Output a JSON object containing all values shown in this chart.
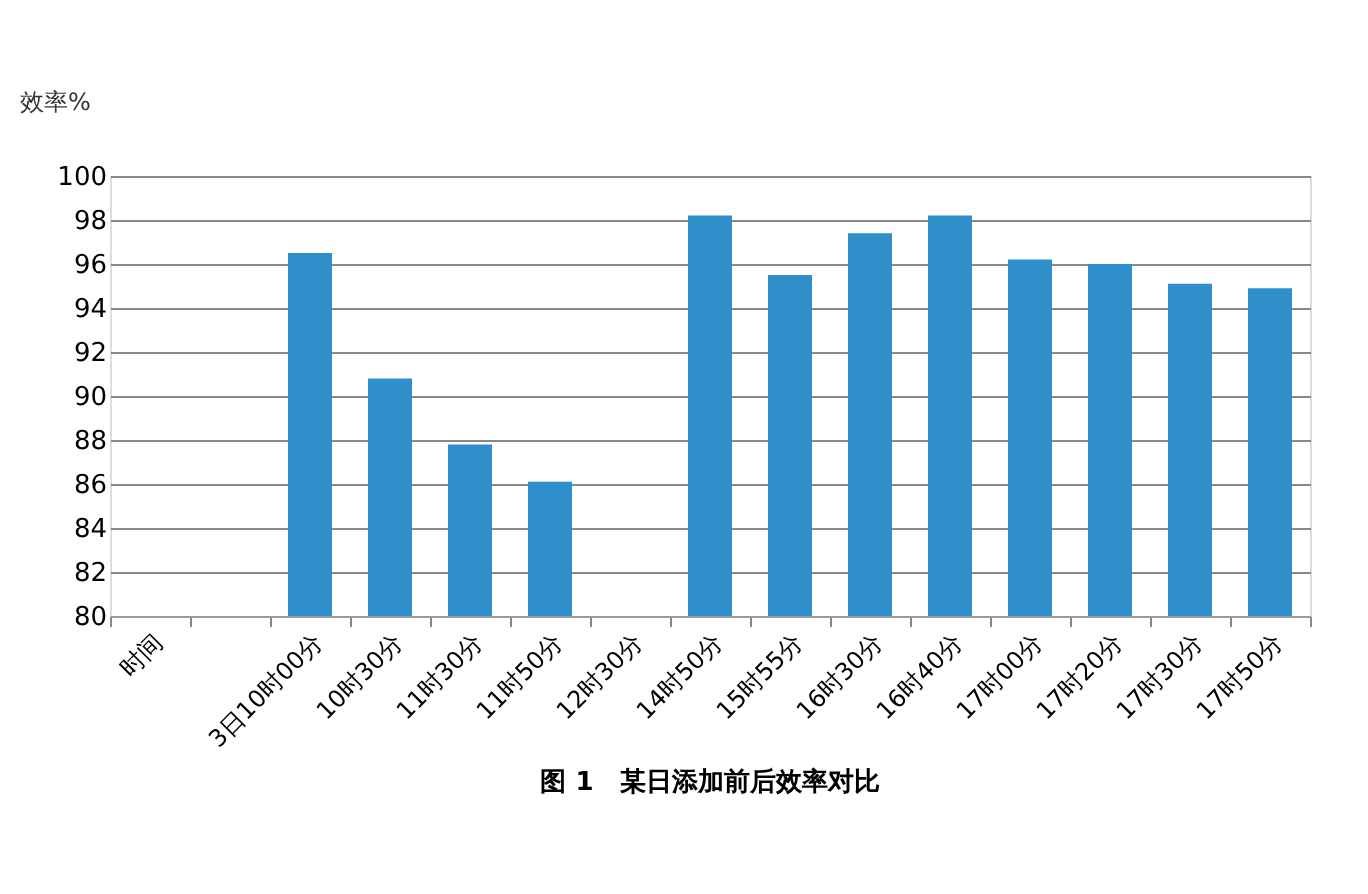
{
  "chart_data": {
    "type": "bar",
    "title": "图 1　某日添加前后效率对比",
    "ylabel": "效率%",
    "categories": [
      "时间",
      null,
      "3日10时00分",
      "10时30分",
      "11时30分",
      "11时50分",
      "12时30分",
      "14时50分",
      "15时55分",
      "16时30分",
      "16时40分",
      "17时00分",
      "17时20分",
      "17时30分",
      "17时50分"
    ],
    "values": [
      null,
      null,
      96.5,
      90.8,
      87.8,
      86.1,
      null,
      98.2,
      95.5,
      97.4,
      98.2,
      96.2,
      96.0,
      95.1,
      94.9
    ],
    "color": "#2e8fcb",
    "ylim": [
      80,
      100
    ],
    "yticks": [
      80,
      82,
      84,
      86,
      88,
      90,
      92,
      94,
      96,
      98,
      100
    ],
    "grid": "y"
  }
}
